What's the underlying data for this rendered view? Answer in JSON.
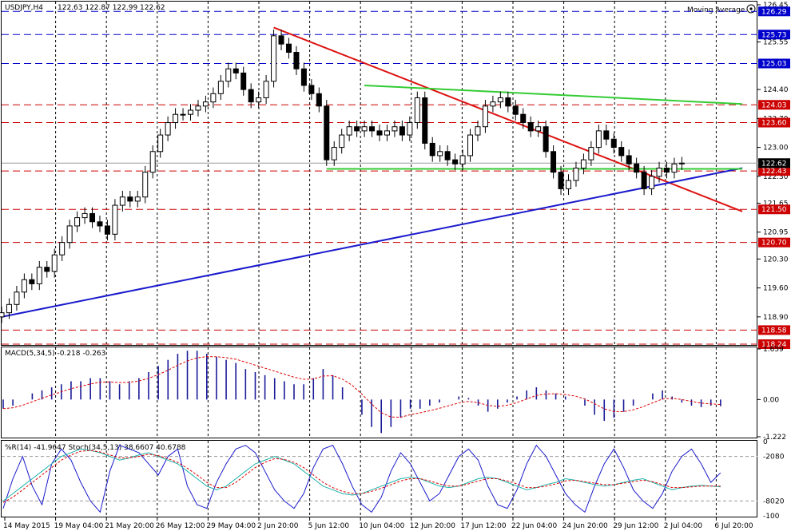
{
  "chart_data": {
    "type": "candlestick",
    "symbol": "USDJPY,H4",
    "ohlc_header": "122.63 122.87 122.99 122.62",
    "indicator_label": "Moving Average",
    "ylim": [
      118.24,
      126.45
    ],
    "y_ticks": [
      "126.45",
      "125.55",
      "124.40",
      "123.70",
      "123.00",
      "122.30",
      "121.65",
      "120.95",
      "120.30",
      "119.60",
      "118.90"
    ],
    "h_levels": [
      {
        "value": "126.29",
        "color": "#0000cc"
      },
      {
        "value": "125.73",
        "color": "#0000cc"
      },
      {
        "value": "125.03",
        "color": "#0000cc"
      },
      {
        "value": "124.03",
        "color": "#cc0000"
      },
      {
        "value": "123.60",
        "color": "#cc0000"
      },
      {
        "value": "122.43",
        "color": "#cc0000"
      },
      {
        "value": "121.50",
        "color": "#cc0000"
      },
      {
        "value": "120.70",
        "color": "#cc0000"
      },
      {
        "value": "118.58",
        "color": "#cc0000"
      },
      {
        "value": "118.24",
        "color": "#cc0000"
      }
    ],
    "current_price": "122.62",
    "x_labels": [
      "14 May 2015",
      "19 May 04:00",
      "21 May 20:00",
      "26 May 12:00",
      "29 May 04:00",
      "2 Jun 20:00",
      "5 Jun 12:00",
      "10 Jun 04:00",
      "12 Jun 20:00",
      "17 Jun 12:00",
      "22 Jun 04:00",
      "24 Jun 20:00",
      "29 Jun 12:00",
      "2 Jul 04:00",
      "6 Jul 20:00"
    ],
    "trendlines": [
      {
        "name": "",
        "color": "#dd1111",
        "x": [
          0.36,
          0.98
        ],
        "y": [
          125.9,
          121.45
        ]
      },
      {
        "name": "",
        "color": "#1a1acc",
        "x": [
          0.0,
          0.98
        ],
        "y": [
          118.9,
          122.5
        ]
      },
      {
        "name": "",
        "color": "#33cc33",
        "x": [
          0.48,
          0.98
        ],
        "y": [
          124.5,
          124.05
        ]
      },
      {
        "name": "",
        "color": "#33cc33",
        "x": [
          0.43,
          0.98
        ],
        "y": [
          122.48,
          122.48
        ]
      }
    ],
    "price_series": [
      [
        0.0,
        119.0
      ],
      [
        0.01,
        119.2
      ],
      [
        0.02,
        119.5
      ],
      [
        0.03,
        119.8
      ],
      [
        0.04,
        119.7
      ],
      [
        0.05,
        120.1
      ],
      [
        0.06,
        120.0
      ],
      [
        0.07,
        120.4
      ],
      [
        0.08,
        120.7
      ],
      [
        0.09,
        121.1
      ],
      [
        0.1,
        121.3
      ],
      [
        0.11,
        121.4
      ],
      [
        0.12,
        121.2
      ],
      [
        0.13,
        121.1
      ],
      [
        0.14,
        120.9
      ],
      [
        0.15,
        121.6
      ],
      [
        0.16,
        121.8
      ],
      [
        0.17,
        121.7
      ],
      [
        0.18,
        121.8
      ],
      [
        0.19,
        122.4
      ],
      [
        0.2,
        122.9
      ],
      [
        0.21,
        123.3
      ],
      [
        0.22,
        123.6
      ],
      [
        0.23,
        123.8
      ],
      [
        0.24,
        123.8
      ],
      [
        0.25,
        123.9
      ],
      [
        0.26,
        124.0
      ],
      [
        0.27,
        124.1
      ],
      [
        0.28,
        124.3
      ],
      [
        0.29,
        124.6
      ],
      [
        0.3,
        124.9
      ],
      [
        0.31,
        124.8
      ],
      [
        0.32,
        124.4
      ],
      [
        0.33,
        124.1
      ],
      [
        0.34,
        124.2
      ],
      [
        0.35,
        124.6
      ],
      [
        0.36,
        125.7
      ],
      [
        0.37,
        125.5
      ],
      [
        0.38,
        125.3
      ],
      [
        0.39,
        124.9
      ],
      [
        0.4,
        124.5
      ],
      [
        0.41,
        124.3
      ],
      [
        0.42,
        124.0
      ],
      [
        0.43,
        122.7
      ],
      [
        0.44,
        123.0
      ],
      [
        0.45,
        123.3
      ],
      [
        0.46,
        123.5
      ],
      [
        0.47,
        123.4
      ],
      [
        0.48,
        123.5
      ],
      [
        0.49,
        123.4
      ],
      [
        0.5,
        123.3
      ],
      [
        0.51,
        123.4
      ],
      [
        0.52,
        123.5
      ],
      [
        0.53,
        123.3
      ],
      [
        0.54,
        123.6
      ],
      [
        0.55,
        124.2
      ],
      [
        0.56,
        123.1
      ],
      [
        0.57,
        122.8
      ],
      [
        0.58,
        122.9
      ],
      [
        0.59,
        122.7
      ],
      [
        0.6,
        122.6
      ],
      [
        0.61,
        122.8
      ],
      [
        0.62,
        123.3
      ],
      [
        0.63,
        123.5
      ],
      [
        0.64,
        124.0
      ],
      [
        0.65,
        124.1
      ],
      [
        0.66,
        124.2
      ],
      [
        0.67,
        124.0
      ],
      [
        0.68,
        123.8
      ],
      [
        0.69,
        123.6
      ],
      [
        0.7,
        123.4
      ],
      [
        0.71,
        123.5
      ],
      [
        0.72,
        122.9
      ],
      [
        0.73,
        122.4
      ],
      [
        0.74,
        122.0
      ],
      [
        0.75,
        122.2
      ],
      [
        0.76,
        122.5
      ],
      [
        0.77,
        122.7
      ],
      [
        0.78,
        123.0
      ],
      [
        0.79,
        123.4
      ],
      [
        0.8,
        123.2
      ],
      [
        0.81,
        123.0
      ],
      [
        0.82,
        122.8
      ],
      [
        0.83,
        122.6
      ],
      [
        0.84,
        122.4
      ],
      [
        0.85,
        122.0
      ],
      [
        0.86,
        122.3
      ],
      [
        0.87,
        122.5
      ],
      [
        0.88,
        122.4
      ],
      [
        0.89,
        122.6
      ],
      [
        0.9,
        122.62
      ]
    ],
    "macd": {
      "label": "MACD(5,34,5) -0.218 -0.263",
      "ticks": [
        "1.659",
        "0.00",
        "-1.222"
      ],
      "range": [
        -1.222,
        1.659
      ],
      "values": [
        -0.3,
        -0.2,
        0.0,
        0.2,
        0.3,
        0.4,
        0.5,
        0.6,
        0.6,
        0.7,
        0.7,
        0.6,
        0.5,
        0.6,
        0.7,
        0.9,
        1.1,
        1.3,
        1.5,
        1.6,
        1.6,
        1.5,
        1.4,
        1.3,
        1.2,
        1.0,
        0.9,
        0.8,
        0.7,
        0.6,
        0.5,
        0.5,
        0.7,
        1.0,
        0.8,
        0.4,
        0.0,
        -0.5,
        -0.9,
        -1.1,
        -0.9,
        -0.6,
        -0.3,
        -0.3,
        -0.2,
        -0.1,
        0.0,
        0.1,
        0.05,
        -0.2,
        -0.4,
        -0.3,
        -0.1,
        0.1,
        0.3,
        0.4,
        0.3,
        0.2,
        0.1,
        0.0,
        -0.2,
        -0.5,
        -0.7,
        -0.6,
        -0.4,
        -0.2,
        0.0,
        0.2,
        0.3,
        0.1,
        -0.1,
        -0.2,
        -0.25,
        -0.2,
        -0.22
      ],
      "signal_color": "#dd0000",
      "bar_color": "#1a1a99"
    },
    "oscillator": {
      "label": "%R(14) -41.9647  Stoch(34,5,13) 38.6607 40.6788",
      "ticks_left": [
        "0",
        "-20",
        "-80",
        "-100"
      ],
      "ticks_right": [
        "80",
        "20"
      ],
      "wpr": [
        -90,
        -50,
        -20,
        -60,
        -85,
        -30,
        -10,
        -25,
        -55,
        -80,
        -95,
        -40,
        -5,
        -10,
        -15,
        -30,
        -45,
        -20,
        -10,
        -60,
        -85,
        -90,
        -55,
        -30,
        -10,
        -5,
        -15,
        -40,
        -65,
        -80,
        -90,
        -70,
        -35,
        -10,
        -5,
        -30,
        -60,
        -85,
        -95,
        -75,
        -40,
        -15,
        -30,
        -55,
        -80,
        -70,
        -45,
        -20,
        -10,
        -25,
        -60,
        -85,
        -90,
        -65,
        -30,
        -5,
        -20,
        -45,
        -70,
        -85,
        -95,
        -60,
        -30,
        -10,
        -35,
        -65,
        -80,
        -90,
        -70,
        -40,
        -20,
        -10,
        -30,
        -55,
        -42
      ],
      "stoch_main": [
        -80,
        -70,
        -60,
        -50,
        -40,
        -30,
        -20,
        -15,
        -10,
        -12,
        -15,
        -20,
        -25,
        -22,
        -18,
        -15,
        -20,
        -25,
        -30,
        -40,
        -50,
        -60,
        -65,
        -60,
        -50,
        -40,
        -30,
        -25,
        -20,
        -25,
        -30,
        -40,
        -50,
        -60,
        -65,
        -70,
        -72,
        -70,
        -65,
        -60,
        -55,
        -50,
        -48,
        -50,
        -55,
        -60,
        -62,
        -60,
        -55,
        -50,
        -48,
        -50,
        -55,
        -60,
        -65,
        -62,
        -58,
        -55,
        -50,
        -52,
        -55,
        -58,
        -60,
        -58,
        -55,
        -52,
        -50,
        -55,
        -60,
        -65,
        -62,
        -60,
        -59,
        -60,
        -61
      ],
      "stoch_signal": [
        -82,
        -75,
        -65,
        -55,
        -45,
        -35,
        -25,
        -18,
        -13,
        -12,
        -14,
        -18,
        -22,
        -22,
        -20,
        -17,
        -19,
        -23,
        -28,
        -36,
        -45,
        -55,
        -62,
        -62,
        -55,
        -45,
        -35,
        -28,
        -23,
        -24,
        -28,
        -35,
        -45,
        -55,
        -62,
        -67,
        -70,
        -70,
        -67,
        -63,
        -58,
        -53,
        -50,
        -50,
        -53,
        -57,
        -60,
        -60,
        -57,
        -53,
        -50,
        -50,
        -53,
        -57,
        -62,
        -62,
        -60,
        -57,
        -53,
        -52,
        -54,
        -56,
        -58,
        -58,
        -56,
        -54,
        -52,
        -54,
        -58,
        -62,
        -62,
        -61,
        -60,
        -60,
        -60
      ]
    }
  }
}
